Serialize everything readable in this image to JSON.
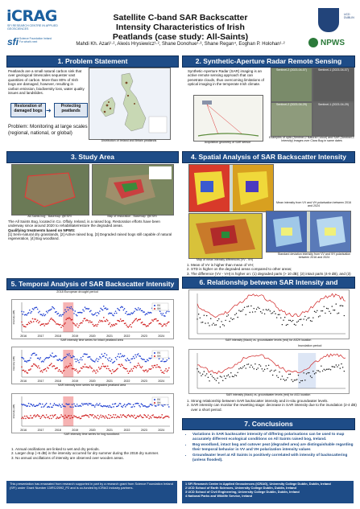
{
  "header": {
    "title": "Satellite C-band SAR Backscatter Intensity Characteristics of Irish Peatlands (case study: All-Saints)",
    "authors": "Mahdi Kh. Azari¹·², Alexis Hrysiewicz¹·², Shane Donohue¹·³, Shane Regan⁴, Eoghan P. Holohan¹·²"
  },
  "logos": {
    "icrag": "iCRAG",
    "icrag_sub": "SFI RESEARCH CENTRE IN APPLIED GEOSCIENCES",
    "sfi": "sfi",
    "sfi_sub": "Science Foundation Ireland For what's next",
    "ucd": "UCD DUBLIN",
    "npws": "NPWS"
  },
  "s1": {
    "title": "1. Problem Statement",
    "text": "Peatlands are a small natural carbon sink that over geological timescales sequester vast quantities of carbon. More than 80% of Irish bogs are damaged, however, resulting in carbon emission, biodiversity loss, water quality issues and landslides.",
    "box_left": "Restoration of damaged bogs",
    "box_right": "Protecting peatlands",
    "problem": "Problem: Monitoring at large scales (regional, national, or global)",
    "cap": "Distribution of Ireland and Britain peatlands"
  },
  "s2": {
    "title": "2. Synthetic-Aperture Radar Remote Sensing",
    "text": "Synthetic-Aperture Radar (SAR) imaging is an active remote sensing approach that can penetrate clouds, thus overcoming limitations of optical imaging in the temperate Irish climate.",
    "cap1": "Acquisition geometry of SAR sensor",
    "cap2": "Examples of optic (Sentinel-2 Natural Colour) and SAR (Sentinel-1 Intensity) images over Clara Bog in same dates",
    "img_labels": [
      "Sentinel-2 (2023-04-07)",
      "Sentinel-1 (2023-04-07)",
      "Sentinel-2 (2023-04-29)",
      "Sentinel-1 (2023-04-29)"
    ]
  },
  "s3": {
    "title": "3. Study Area",
    "cap1": "All-Saints bog - Basemap: @ESRI",
    "cap2": "Map of restoration - Basemap: @ESRI",
    "text": "The All Saints Bog, located in Co. Offaly, Ireland, is a raised bog. Restoration efforts have been underway since around 2020 to rehabilitate/restore the degraded areas.",
    "q": "Qualifying treatments based on NPWS:",
    "q_list": "[1] Semi-natural dry grasslands, [2] Active raised bog, [3] Degraded raised bogs still capable of natural regeneration, [4] Bog woodland."
  },
  "s4": {
    "title": "4. Spatial Analysis of SAR Backscatter Intensity",
    "cap1": "Mean intensity from VV and VH polarisation between 2016 and 2024",
    "cap2": "Map of mean intensity differences (VV - VH)",
    "cap3": "Standard deviation intensity from VV and VH polarisation between 2016 and 2024",
    "points": [
      "Mean of VV is higher than mean of VH;",
      "STD is higher on the degraded areas compared to other areas;",
      "The difference (VV - VH) is higher on: (1) degraded parts (> 10 dB); (2) intact parts (4-9 dB), and (3) wooden parts (5-8 dB)."
    ]
  },
  "s5": {
    "title": "5. Temporal Analysis of SAR Backscatter Intensity",
    "annot": "2018 European drought period",
    "cap1": "SAR intensity time series for intact peatland area",
    "cap2": "SAR intensity time series for degraded peatland area",
    "cap3": "SAR intensity time series for bog woodland.",
    "ylabel": "Intensity (dB)",
    "legend": [
      "VV",
      "VH"
    ],
    "years": [
      "2016",
      "2017",
      "2018",
      "2019",
      "2020",
      "2021",
      "2022",
      "2023",
      "2024"
    ],
    "points": [
      "Annual oscillations are linked to wet and dry periods.",
      "Larger drop (~5 dB) in the intensity occurred for dry summer during the 2018 dry summer.",
      "No annual oscillations of intensity are observed over wooden areas."
    ]
  },
  "s6": {
    "title": "6. Relationship between SAR Intensity and Groundwater Levels",
    "cap1": "SAR intensity (black) vs. groundwater levels (red) for AS29 location",
    "cap2": "SAR intensity (black) vs. groundwater levels (red) for AS3 location",
    "annot": "Inundation period",
    "points": [
      "Strong relationship between SAR backscatter intensity and in-situ groundwater levels.",
      "SAR intensity can monitor the rewetting stage: decrease in SAR intensity due to the inundation (2-4 dB) over a short period."
    ]
  },
  "s7": {
    "title": "7. Conclusions",
    "points": [
      "Variations in SAR backscatter intensity of differing polarisations can be used to map accurately different ecological conditions on All Saints raised bog, Ireland.",
      "Bog woodland, intact bog and cutover peat (degraded area) are distinguishable regarding their temporal behavior in VV and VH polarization intensity values",
      "Groundwater level at All Saints is positively correlated with intensity of backscattering (unless flooded)."
    ]
  },
  "footer": {
    "funding": "This presentation has emanated from research supported in part by a research grant from Science Foundation Ireland (SFI) under Grant Number 13/RC/2092_P2 and is co-funded by iCRAG industry partners.",
    "affils": [
      "1 SFI Research Centre in Applied Geosciences (iCRAG), University College Dublin, Dublin, Ireland",
      "2 UCD School of Earth Sciences, University College Dublin, Dublin, Ireland",
      "3 UCD School of Civil Engineering, University College Dublin, Dublin, Ireland",
      "4 National Parks and Wildlife Service, Ireland"
    ]
  },
  "colors": {
    "accent": "#1e4c87",
    "vv": "#1f3fd0",
    "vh": "#d02020",
    "drought": "#f6b3b3"
  }
}
